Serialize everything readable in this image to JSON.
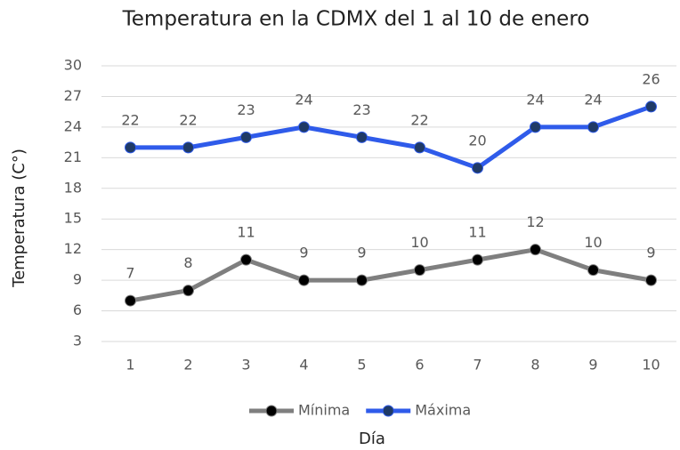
{
  "chart_data": {
    "type": "line",
    "title": "Temperatura en la CDMX  del 1 al 10 de enero",
    "x_label": "Día",
    "y_label": "Temperatura (C°)",
    "categories": [
      "1",
      "2",
      "3",
      "4",
      "5",
      "6",
      "7",
      "8",
      "9",
      "10"
    ],
    "series": [
      {
        "name": "Mínima",
        "color": "#7f7f7f",
        "marker_color": "#000000",
        "values": [
          7,
          8,
          11,
          9,
          9,
          10,
          11,
          12,
          10,
          9
        ]
      },
      {
        "name": "Máxima",
        "color": "#2f5bea",
        "marker_color": "#1f3a66",
        "values": [
          22,
          22,
          23,
          24,
          23,
          22,
          20,
          24,
          24,
          26
        ]
      }
    ],
    "ylim": [
      3,
      30
    ],
    "yticks": [
      3,
      6,
      9,
      12,
      15,
      18,
      21,
      24,
      27,
      30
    ],
    "grid": true,
    "legend": "bottom",
    "data_labels": true
  }
}
